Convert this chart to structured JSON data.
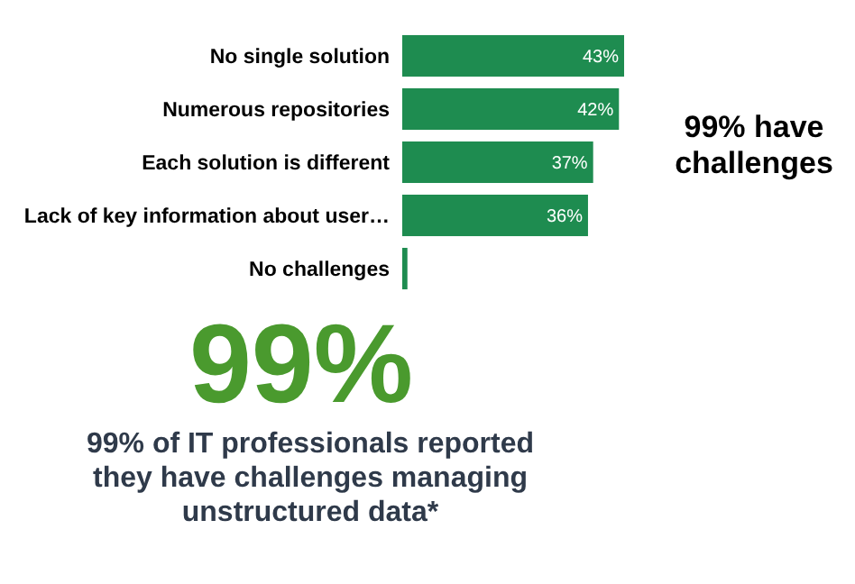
{
  "chart_data": {
    "type": "bar",
    "orientation": "horizontal",
    "categories": [
      "No single solution",
      "Numerous repositories",
      "Each solution is different",
      "Lack of key information about user…",
      "No challenges"
    ],
    "values": [
      43,
      42,
      37,
      36,
      1
    ],
    "color": "#1e8c50",
    "value_labels": [
      "43%",
      "42%",
      "37%",
      "36%",
      null
    ],
    "annotations": [
      "99% have challenges",
      "99%",
      "99% of IT professionals reported they have challenges managing unstructured data*"
    ]
  }
}
